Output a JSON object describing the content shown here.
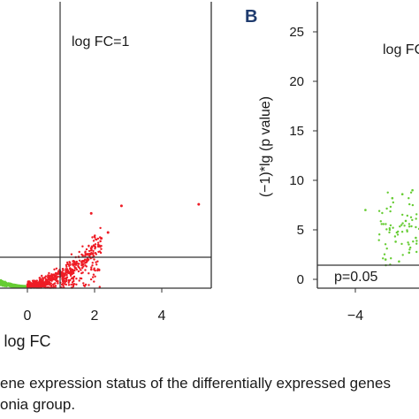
{
  "panel_b_label": "B",
  "caption": {
    "line1": "ene expression status of the differentially expressed genes",
    "line2": "onia group."
  },
  "chart_data": [
    {
      "panel": "A",
      "type": "scatter",
      "xlabel": "log FC",
      "ylabel": "",
      "x_ticks": [
        "0",
        "2",
        "4"
      ],
      "xlim": [
        -1.2,
        5.5
      ],
      "ylim": [
        0,
        25
      ],
      "grid": false,
      "annotations": [
        {
          "text": "log FC=1",
          "kind": "vertical-threshold",
          "value": 1
        }
      ],
      "thresholds": {
        "log_fc": 1,
        "neg_log10_p": 1.3
      },
      "colors": {
        "down": "#66cc33",
        "up": "#ee1c25",
        "axes": "#333333"
      },
      "series": [
        {
          "color": "#ee1c25",
          "points": [
            [
              5.1,
              10.1
            ],
            [
              2.8,
              9.9
            ],
            [
              1.9,
              9.0
            ],
            [
              2.4,
              6.7
            ],
            [
              2.2,
              6.0
            ]
          ]
        }
      ]
    },
    {
      "panel": "B",
      "type": "scatter",
      "xlabel": "",
      "ylabel": "(−1)*lg (p value)",
      "x_ticks": [
        "−4"
      ],
      "y_ticks": [
        "0",
        "5",
        "10",
        "15",
        "20",
        "25"
      ],
      "xlim": [
        -5,
        1.8
      ],
      "ylim": [
        -0.5,
        26
      ],
      "grid": false,
      "annotations": [
        {
          "text": "log FC=",
          "kind": "vertical-threshold"
        },
        {
          "text": "p=0.05",
          "kind": "horizontal-threshold",
          "value": 1.3
        }
      ],
      "thresholds": {
        "neg_log10_p": 1.3
      },
      "colors": {
        "down": "#66cc33",
        "axes": "#333333"
      },
      "series": [
        {
          "color": "#66cc33",
          "points": [
            [
              -3.7,
              7.0
            ],
            [
              -2.9,
              8.2
            ],
            [
              -2.6,
              8.6
            ],
            [
              -2.3,
              9.0
            ],
            [
              -2.0,
              8.9
            ],
            [
              -3.1,
              2.0
            ],
            [
              -2.8,
              3.8
            ],
            [
              -2.5,
              5.9
            ],
            [
              -2.2,
              4.2
            ],
            [
              -1.9,
              6.5
            ],
            [
              -1.6,
              3.0
            ],
            [
              -2.7,
              1.8
            ],
            [
              -2.4,
              2.7
            ],
            [
              -2.1,
              5.1
            ],
            [
              -1.8,
              7.6
            ],
            [
              -1.4,
              4.7
            ]
          ]
        }
      ]
    }
  ]
}
